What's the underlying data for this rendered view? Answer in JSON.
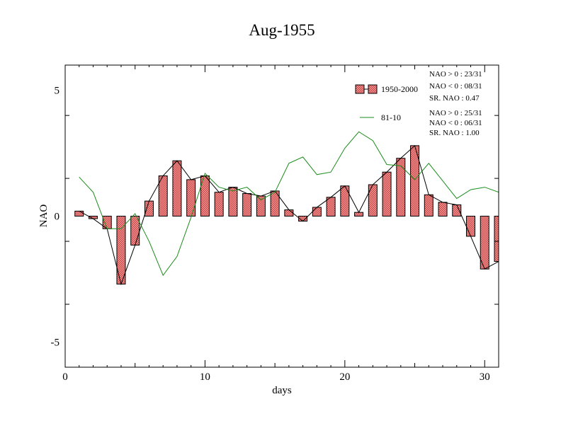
{
  "chart_data": {
    "type": "bar",
    "title": "Aug-1955",
    "xlabel": "days",
    "ylabel": "NAO",
    "xlim": [
      0,
      31
    ],
    "ylim": [
      -6,
      6
    ],
    "x_ticks": [
      0,
      10,
      20,
      30
    ],
    "y_ticks": [
      -5,
      0,
      5
    ],
    "grid": false,
    "legend_position": "top-right",
    "x": [
      1,
      2,
      3,
      4,
      5,
      6,
      7,
      8,
      9,
      10,
      11,
      12,
      13,
      14,
      15,
      16,
      17,
      18,
      19,
      20,
      21,
      22,
      23,
      24,
      25,
      26,
      27,
      28,
      29,
      30,
      31
    ],
    "series": [
      {
        "name": "1950-2000",
        "kind": "bar-with-line",
        "color": "#e06666",
        "line_color": "#000000",
        "values": [
          0.2,
          -0.1,
          -0.5,
          -2.7,
          -1.15,
          0.6,
          1.6,
          2.2,
          1.45,
          1.6,
          0.95,
          1.15,
          0.9,
          0.8,
          1.0,
          0.25,
          -0.2,
          0.35,
          0.75,
          1.2,
          0.15,
          1.25,
          1.75,
          2.3,
          2.8,
          0.85,
          0.55,
          0.45,
          -0.8,
          -2.1,
          -1.8
        ]
      },
      {
        "name": "81-10",
        "kind": "line",
        "color": "#1a8c1a",
        "values": [
          1.55,
          0.95,
          -0.5,
          -0.5,
          0.1,
          -1.0,
          -2.35,
          -1.6,
          -0.05,
          1.7,
          1.15,
          1.0,
          1.15,
          0.65,
          0.95,
          2.1,
          2.35,
          1.65,
          1.75,
          2.7,
          3.35,
          3.0,
          2.05,
          2.0,
          1.45,
          2.1,
          1.4,
          0.7,
          1.05,
          1.15,
          0.95
        ]
      }
    ],
    "stats": [
      [
        "NAO > 0 : 23/31",
        "NAO < 0 : 08/31",
        "SR. NAO :  0.47"
      ],
      [
        "NAO > 0 : 25/31",
        "NAO < 0 : 06/31",
        "SR. NAO :  1.00"
      ]
    ]
  }
}
